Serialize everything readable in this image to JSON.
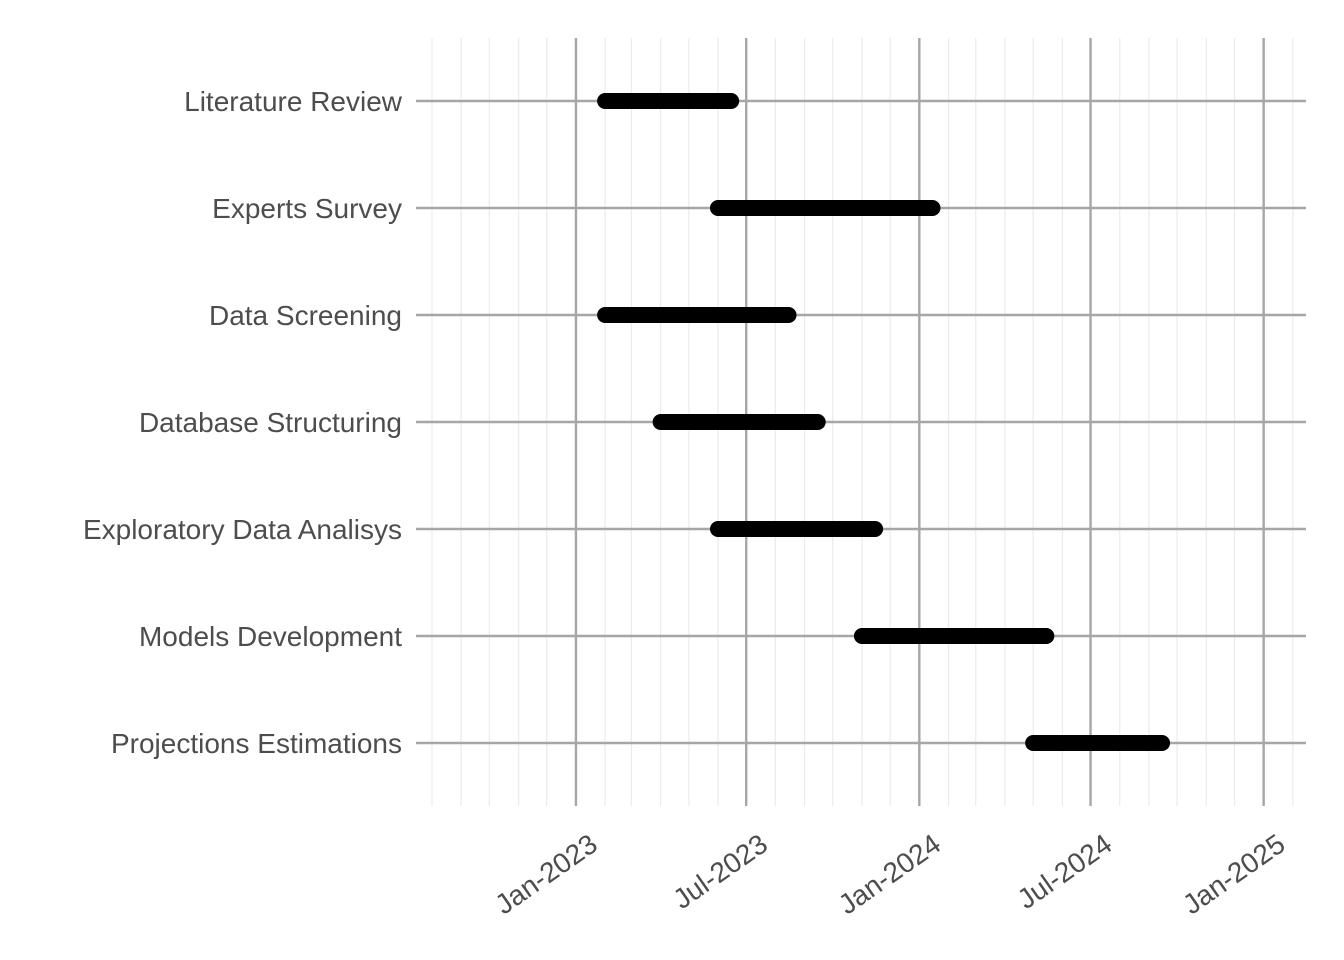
{
  "chart_data": {
    "type": "gantt",
    "title": "",
    "xlabel": "",
    "ylabel": "",
    "grid": true,
    "x_ticks": [
      {
        "date": "2023-01-01",
        "label": "Jan-2023"
      },
      {
        "date": "2023-07-01",
        "label": "Jul-2023"
      },
      {
        "date": "2024-01-01",
        "label": "Jan-2024"
      },
      {
        "date": "2024-07-01",
        "label": "Jul-2024"
      },
      {
        "date": "2025-01-01",
        "label": "Jan-2025"
      }
    ],
    "xlim": [
      "2022-07-15",
      "2025-02-15"
    ],
    "tasks": [
      {
        "name": "Literature Review",
        "start": "2023-02-01",
        "end": "2023-06-15"
      },
      {
        "name": "Experts Survey",
        "start": "2023-06-01",
        "end": "2024-01-15"
      },
      {
        "name": "Data Screening",
        "start": "2023-02-01",
        "end": "2023-08-15"
      },
      {
        "name": "Database Structuring",
        "start": "2023-04-01",
        "end": "2023-09-15"
      },
      {
        "name": "Exploratory Data Analisys",
        "start": "2023-06-01",
        "end": "2023-11-15"
      },
      {
        "name": "Models Development",
        "start": "2023-11-01",
        "end": "2024-05-15"
      },
      {
        "name": "Projections Estimations",
        "start": "2024-05-01",
        "end": "2024-09-15"
      }
    ],
    "colors": {
      "bar": "#000000",
      "major_grid": "#a6a6a6",
      "minor_grid": "#ebebeb",
      "text": "#4d4d4d"
    }
  }
}
